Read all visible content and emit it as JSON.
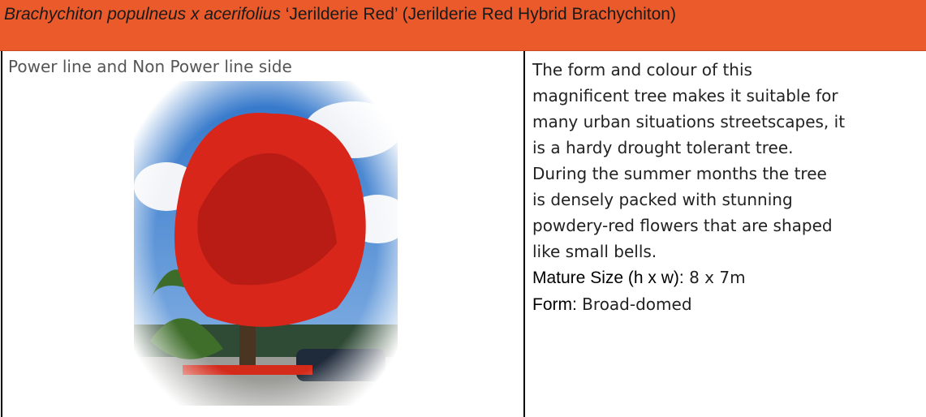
{
  "header": {
    "title_italic": "Brachychiton populneus x acerifolius",
    "title_rest": " ‘Jerilderie Red’ (Jerilderie Red Hybrid Brachychiton)"
  },
  "left": {
    "text": "Power line and Non Power line side"
  },
  "right": {
    "lines": [
      "The form and colour of this",
      "magnificent tree makes it suitable for",
      "many urban situations streetscapes, it",
      "is a hardy drought tolerant tree.",
      "During the summer months the tree",
      "is densely packed with stunning",
      "powdery-red flowers that are shaped",
      "like small bells."
    ],
    "fields": [
      {
        "label": "Mature Size (h x w):",
        "value": " 8 x 7m"
      },
      {
        "label": "Form:",
        "value": " Broad-domed"
      }
    ]
  }
}
